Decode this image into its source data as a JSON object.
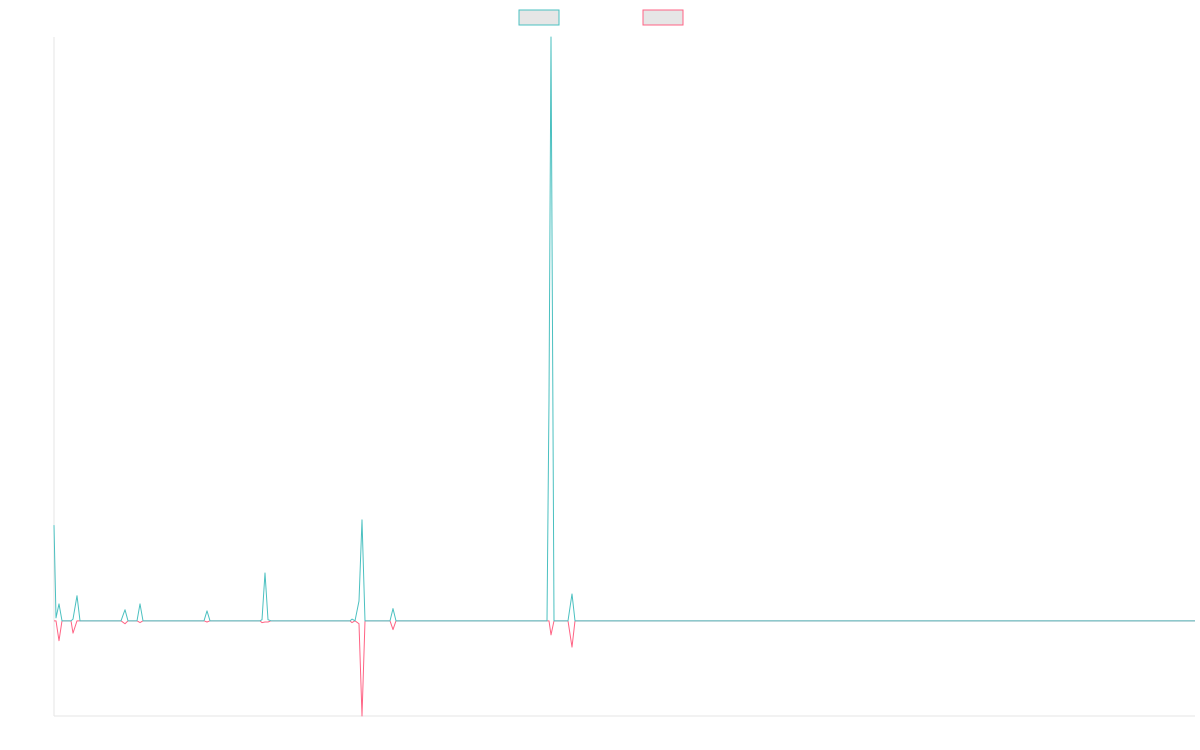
{
  "chart_data": {
    "type": "line",
    "xlim": [
      0,
      1141
    ],
    "ylim": [
      -16.3,
      100
    ],
    "legend": "top",
    "x": [
      0,
      2,
      5,
      8,
      17,
      19,
      23,
      26,
      67,
      71,
      74,
      83,
      86,
      89,
      150,
      153,
      156,
      206,
      208,
      211,
      214,
      217,
      296,
      298,
      301,
      305,
      308,
      311,
      336,
      339,
      342,
      493,
      495,
      497,
      500,
      514,
      518,
      521,
      1141
    ],
    "series": [
      {
        "color": "#4bc0c0",
        "values": [
          16.4,
          0.5,
          2.9,
          0,
          0,
          0.3,
          4.3,
          0,
          0,
          1.9,
          0,
          0,
          2.9,
          0,
          0,
          1.7,
          0,
          0,
          0.2,
          8.2,
          0.2,
          0,
          0,
          0.3,
          0,
          3.4,
          17.3,
          0,
          0,
          2.1,
          0,
          0,
          37.8,
          100,
          0,
          0,
          4.6,
          0,
          0
        ]
      },
      {
        "color": "#ff6384",
        "values": [
          0,
          0,
          -3.4,
          0,
          0,
          -2.1,
          0,
          0,
          0,
          -0.5,
          0,
          0,
          -0.3,
          0,
          0,
          -0.2,
          0,
          0,
          -0.3,
          -0.2,
          -0.2,
          0,
          0,
          -0.3,
          0,
          -0.5,
          -16.3,
          0,
          0,
          -1.5,
          0,
          0,
          0,
          -2.4,
          0,
          0,
          -4.5,
          0,
          0
        ]
      }
    ]
  }
}
